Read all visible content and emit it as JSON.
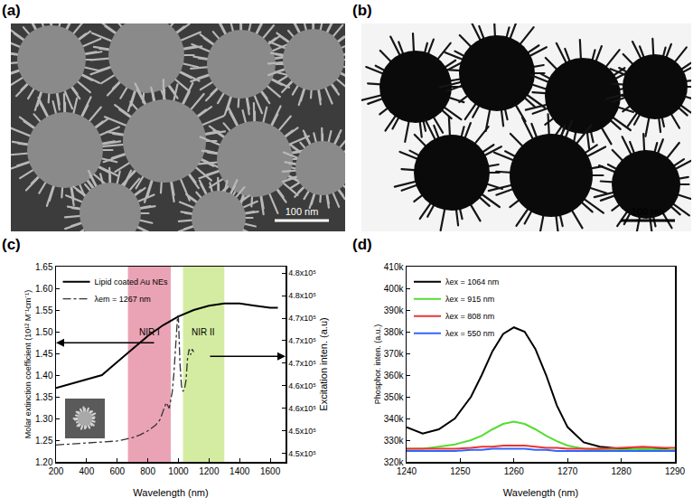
{
  "images": [
    {
      "label": "(a)",
      "scale_bar": "100 nm"
    },
    {
      "label": "(b)",
      "scale_bar": "100 nm"
    }
  ],
  "chart_data": [
    {
      "panel": "(c)",
      "type": "line",
      "x_label": "Wavelength (nm)",
      "y_label": "Molar extinction coefficient (10¹² M⁻¹cm⁻¹)",
      "y2_label": "Excitation inten. (a.u)",
      "xlim": [
        200,
        1700
      ],
      "xticks": [
        200,
        400,
        600,
        800,
        1000,
        1200,
        1400,
        1600
      ],
      "ylim": [
        1.2,
        1.65
      ],
      "yticks": [
        {
          "value": 1.2,
          "label": "1.20"
        },
        1.25,
        {
          "value": 1.3,
          "label": "1.30"
        },
        1.35,
        {
          "value": 1.4,
          "label": "1.40"
        },
        1.45,
        {
          "value": 1.5,
          "label": "1.50"
        },
        1.55,
        {
          "value": 1.6,
          "label": "1.60"
        },
        1.65
      ],
      "y2lim": [
        448500,
        483150
      ],
      "y2ticks": [
        {
          "value": 450000,
          "label": "4.5x10⁵"
        },
        {
          "value": 454000,
          "label": "4.5x10⁵"
        },
        {
          "value": 458000,
          "label": "4.6x10⁵"
        },
        {
          "value": 462000,
          "label": "4.6x10⁵"
        },
        {
          "value": 466000,
          "label": "4.7x10⁵"
        },
        {
          "value": 470000,
          "label": "4.7x10⁵"
        },
        {
          "value": 474000,
          "label": "4.7x10⁵"
        },
        {
          "value": 478000,
          "label": "4.8x10⁵"
        },
        {
          "value": 482000,
          "label": "4.8x10⁵"
        }
      ],
      "grid": false,
      "legend": "upper left",
      "regions": [
        {
          "label": "NIR I",
          "x": [
            670,
            950
          ],
          "color": "#eaa3b5"
        },
        {
          "label": "NIR II",
          "x": [
            1030,
            1300
          ],
          "color": "#d4eca2"
        }
      ],
      "series": [
        {
          "name": "Lipid coated Au NEs",
          "color": "#000000",
          "line_style": "solid",
          "x": [
            200,
            300,
            400,
            500,
            600,
            700,
            800,
            900,
            1000,
            1100,
            1200,
            1300,
            1400,
            1500,
            1600,
            1650
          ],
          "values": [
            1.37,
            1.38,
            1.39,
            1.4,
            1.43,
            1.46,
            1.49,
            1.515,
            1.535,
            1.55,
            1.56,
            1.565,
            1.565,
            1.56,
            1.555,
            1.555
          ]
        },
        {
          "name": "λem = 1267 nm",
          "color": "#333333",
          "line_style": "dashdot",
          "axis": "y2",
          "x": [
            200,
            300,
            400,
            500,
            600,
            650,
            700,
            750,
            800,
            850,
            880,
            900,
            920,
            940,
            960,
            970,
            980,
            990,
            995,
            1000,
            1005,
            1010,
            1020,
            1030,
            1040,
            1050,
            1060,
            1070,
            1080,
            1090,
            1100
          ],
          "values": [
            451500,
            451700,
            451800,
            452000,
            452200,
            452500,
            452800,
            453300,
            454000,
            455000,
            456000,
            457500,
            459000,
            458000,
            461000,
            464000,
            468000,
            472000,
            474500,
            474000,
            470000,
            466000,
            462000,
            461000,
            461500,
            463000,
            467000,
            468500,
            467500,
            468500,
            468000
          ]
        }
      ]
    },
    {
      "panel": "(d)",
      "type": "line",
      "x_label": "Wavelength (nm)",
      "y_label": "Phosphor. inten. (a.u.)",
      "xlim": [
        1240,
        1290
      ],
      "xticks": [
        1240,
        1250,
        1260,
        1270,
        1280,
        1290
      ],
      "ylim": [
        320000,
        410000
      ],
      "yticks": [
        {
          "value": 320000,
          "label": "320k"
        },
        {
          "value": 330000,
          "label": "330k"
        },
        {
          "value": 340000,
          "label": "340k"
        },
        {
          "value": 350000,
          "label": "350k"
        },
        {
          "value": 360000,
          "label": "360k"
        },
        {
          "value": 370000,
          "label": "370k"
        },
        {
          "value": 380000,
          "label": "380k"
        },
        {
          "value": 390000,
          "label": "390k"
        },
        {
          "value": 400000,
          "label": "400k"
        },
        {
          "value": 410000,
          "label": "410k"
        }
      ],
      "grid": false,
      "legend": "upper left",
      "x": [
        1240,
        1243,
        1246,
        1249,
        1252,
        1254,
        1256,
        1258,
        1260,
        1262,
        1264,
        1266,
        1268,
        1270,
        1273,
        1276,
        1280,
        1284,
        1288,
        1290
      ],
      "series": [
        {
          "name": "λex = 1064 nm",
          "color": "#000000",
          "line_style": "solid",
          "values": [
            336000,
            333000,
            335000,
            340000,
            350000,
            360000,
            371000,
            379000,
            382000,
            380000,
            372000,
            360000,
            346000,
            336000,
            329000,
            327000,
            326000,
            326000,
            326000,
            325000
          ]
        },
        {
          "name": "λex = 915 nm",
          "color": "#55dd33",
          "line_style": "solid",
          "values": [
            326000,
            326000,
            327000,
            328000,
            330000,
            332000,
            335000,
            337500,
            338500,
            337500,
            335000,
            332000,
            329500,
            327500,
            326000,
            325500,
            325500,
            326000,
            325500,
            325500
          ]
        },
        {
          "name": "λex = 808 nm",
          "color": "#ee3333",
          "line_style": "solid",
          "values": [
            326000,
            326000,
            326000,
            326000,
            326500,
            327000,
            327000,
            327500,
            327500,
            327500,
            327000,
            326500,
            326500,
            326000,
            326000,
            326000,
            326500,
            327000,
            326500,
            326500
          ]
        },
        {
          "name": "λex = 550 nm",
          "color": "#3366ff",
          "line_style": "solid",
          "values": [
            325000,
            325000,
            325000,
            325000,
            325500,
            325500,
            326000,
            326000,
            326000,
            326000,
            325500,
            325500,
            325000,
            325000,
            325000,
            325000,
            325000,
            325000,
            325000,
            325000
          ]
        }
      ]
    }
  ]
}
